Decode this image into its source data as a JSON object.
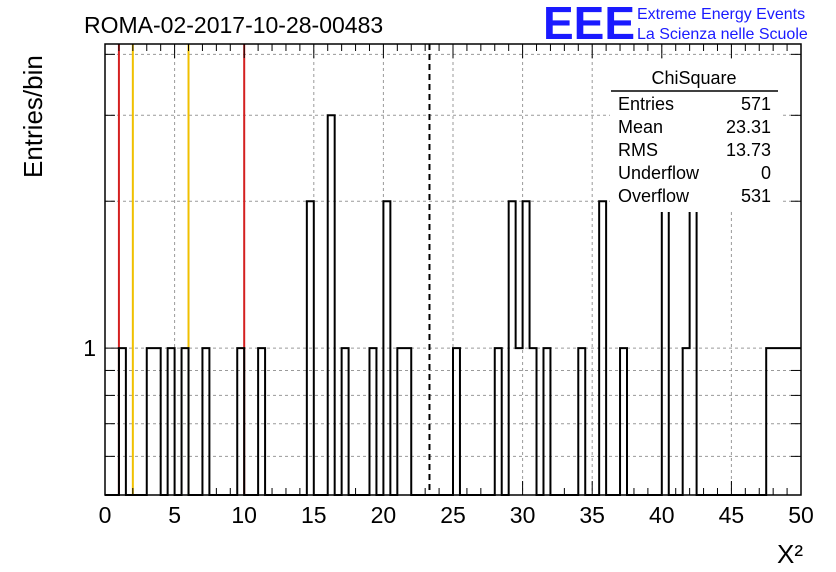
{
  "title": "ROMA-02-2017-10-28-00483",
  "logo": {
    "mark": "EEE",
    "line1": "Extreme Energy Events",
    "line2": "La Scienza nelle Scuole",
    "color": "#1a1aff"
  },
  "chart_data": {
    "type": "histogram",
    "xlabel": "X²",
    "ylabel": "Entries/bin",
    "xlim": [
      0,
      50
    ],
    "ylim": [
      0.5,
      4.2
    ],
    "y_scale": "log",
    "grid": true,
    "bin_width": 0.5,
    "x_ticks": [
      "0",
      "5",
      "10",
      "15",
      "20",
      "25",
      "30",
      "35",
      "40",
      "45",
      "50"
    ],
    "y_tick_labels": [
      "1"
    ],
    "bins": [
      {
        "x": 1.0,
        "value": 1
      },
      {
        "x": 3.0,
        "value": 1
      },
      {
        "x": 3.5,
        "value": 1
      },
      {
        "x": 4.5,
        "value": 1
      },
      {
        "x": 5.5,
        "value": 1
      },
      {
        "x": 7.0,
        "value": 1
      },
      {
        "x": 9.5,
        "value": 1
      },
      {
        "x": 11.0,
        "value": 1
      },
      {
        "x": 14.5,
        "value": 2
      },
      {
        "x": 16.0,
        "value": 3
      },
      {
        "x": 17.0,
        "value": 1
      },
      {
        "x": 19.0,
        "value": 1
      },
      {
        "x": 20.0,
        "value": 2
      },
      {
        "x": 21.0,
        "value": 1
      },
      {
        "x": 21.5,
        "value": 1
      },
      {
        "x": 25.0,
        "value": 1
      },
      {
        "x": 28.0,
        "value": 1
      },
      {
        "x": 29.0,
        "value": 2
      },
      {
        "x": 29.5,
        "value": 1
      },
      {
        "x": 30.0,
        "value": 2
      },
      {
        "x": 30.5,
        "value": 1
      },
      {
        "x": 31.5,
        "value": 1
      },
      {
        "x": 34.0,
        "value": 1
      },
      {
        "x": 35.5,
        "value": 2
      },
      {
        "x": 37.0,
        "value": 1
      },
      {
        "x": 40.0,
        "value": 2
      },
      {
        "x": 41.5,
        "value": 1
      },
      {
        "x": 42.0,
        "value": 2
      },
      {
        "x": 47.5,
        "value": 1
      },
      {
        "x": 48.0,
        "value": 1
      },
      {
        "x": 48.5,
        "value": 1
      },
      {
        "x": 49.0,
        "value": 1
      },
      {
        "x": 49.5,
        "value": 1
      }
    ],
    "vertical_lines": [
      {
        "x": 1.0,
        "color": "#d42020",
        "style": "solid"
      },
      {
        "x": 2.0,
        "color": "#f0c000",
        "style": "solid"
      },
      {
        "x": 6.0,
        "color": "#f0c000",
        "style": "solid"
      },
      {
        "x": 10.0,
        "color": "#d42020",
        "style": "solid"
      },
      {
        "x": 23.31,
        "color": "#000000",
        "style": "dashed"
      }
    ],
    "stats_box": {
      "title": "ChiSquare",
      "rows": [
        {
          "label": "Entries",
          "value": "571"
        },
        {
          "label": "Mean",
          "value": "23.31"
        },
        {
          "label": "RMS",
          "value": "13.73"
        },
        {
          "label": "Underflow",
          "value": "0"
        },
        {
          "label": "Overflow",
          "value": "531"
        }
      ]
    }
  }
}
